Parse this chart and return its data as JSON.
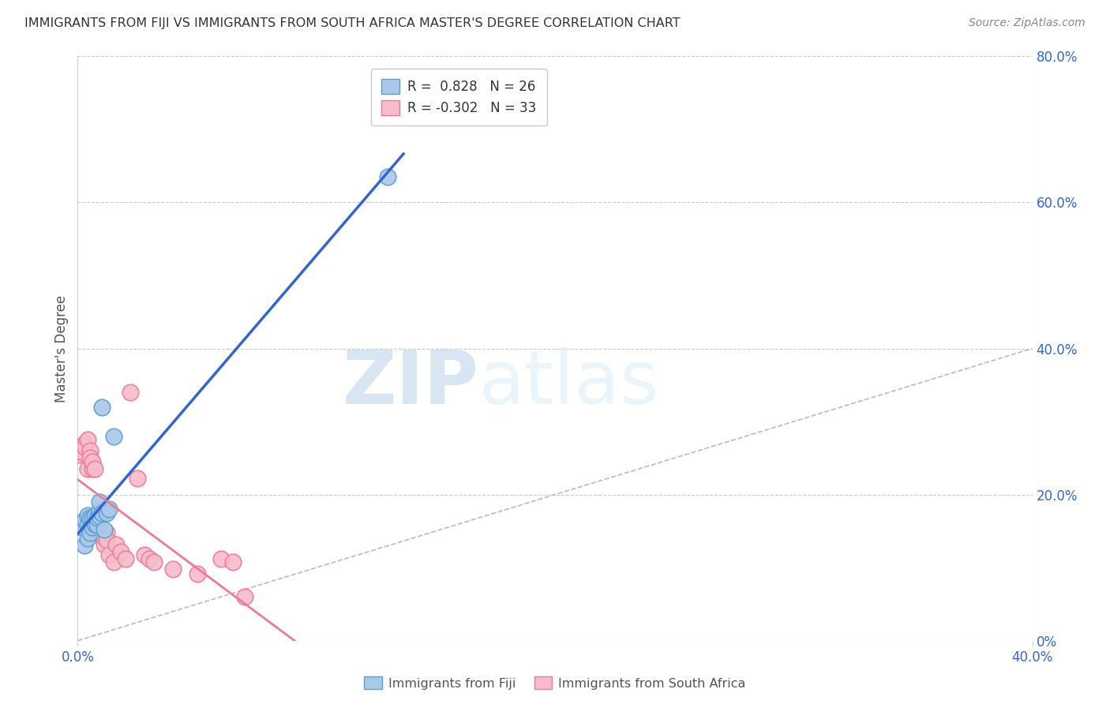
{
  "title": "IMMIGRANTS FROM FIJI VS IMMIGRANTS FROM SOUTH AFRICA MASTER'S DEGREE CORRELATION CHART",
  "source": "Source: ZipAtlas.com",
  "ylabel": "Master's Degree",
  "fiji_R": 0.828,
  "fiji_N": 26,
  "sa_R": -0.302,
  "sa_N": 33,
  "fiji_color": "#aac8e8",
  "fiji_color_dark": "#5a9fd4",
  "sa_color": "#f5bccb",
  "sa_color_dark": "#f07898",
  "trend_fiji_color": "#3366cc",
  "trend_sa_color": "#f07898",
  "diagonal_color": "#bbbbbb",
  "background_color": "#ffffff",
  "grid_color": "#cccccc",
  "fiji_scatter_x": [
    0.002,
    0.003,
    0.003,
    0.004,
    0.004,
    0.004,
    0.005,
    0.005,
    0.005,
    0.006,
    0.006,
    0.006,
    0.007,
    0.007,
    0.008,
    0.008,
    0.009,
    0.009,
    0.009,
    0.01,
    0.01,
    0.011,
    0.012,
    0.013,
    0.015,
    0.13
  ],
  "fiji_scatter_y": [
    0.155,
    0.13,
    0.165,
    0.14,
    0.158,
    0.172,
    0.155,
    0.168,
    0.148,
    0.16,
    0.168,
    0.155,
    0.16,
    0.17,
    0.158,
    0.168,
    0.17,
    0.178,
    0.19,
    0.175,
    0.32,
    0.152,
    0.175,
    0.18,
    0.28,
    0.635
  ],
  "sa_scatter_x": [
    0.001,
    0.002,
    0.003,
    0.003,
    0.004,
    0.004,
    0.005,
    0.005,
    0.006,
    0.006,
    0.007,
    0.008,
    0.008,
    0.009,
    0.01,
    0.011,
    0.012,
    0.012,
    0.013,
    0.015,
    0.016,
    0.018,
    0.02,
    0.022,
    0.025,
    0.028,
    0.03,
    0.032,
    0.04,
    0.05,
    0.06,
    0.065,
    0.07
  ],
  "sa_scatter_y": [
    0.255,
    0.258,
    0.27,
    0.265,
    0.275,
    0.235,
    0.26,
    0.25,
    0.235,
    0.245,
    0.235,
    0.155,
    0.165,
    0.148,
    0.142,
    0.132,
    0.148,
    0.138,
    0.118,
    0.108,
    0.132,
    0.122,
    0.112,
    0.34,
    0.222,
    0.118,
    0.112,
    0.108,
    0.098,
    0.092,
    0.112,
    0.108,
    0.06
  ],
  "xlim": [
    0.0,
    0.4
  ],
  "ylim": [
    0.0,
    0.8
  ],
  "right_yticks": [
    0.0,
    0.2,
    0.4,
    0.6,
    0.8
  ],
  "right_yticklabels": [
    "0%",
    "20.0%",
    "40.0%",
    "60.0%",
    "80.0%"
  ],
  "xtick_positions": [
    0.0,
    0.4
  ],
  "xtick_labels": [
    "0.0%",
    "40.0%"
  ],
  "legend_fiji_label": "R =  0.828   N = 26",
  "legend_sa_label": "R = -0.302   N = 33",
  "watermark_zip": "ZIP",
  "watermark_atlas": "atlas"
}
